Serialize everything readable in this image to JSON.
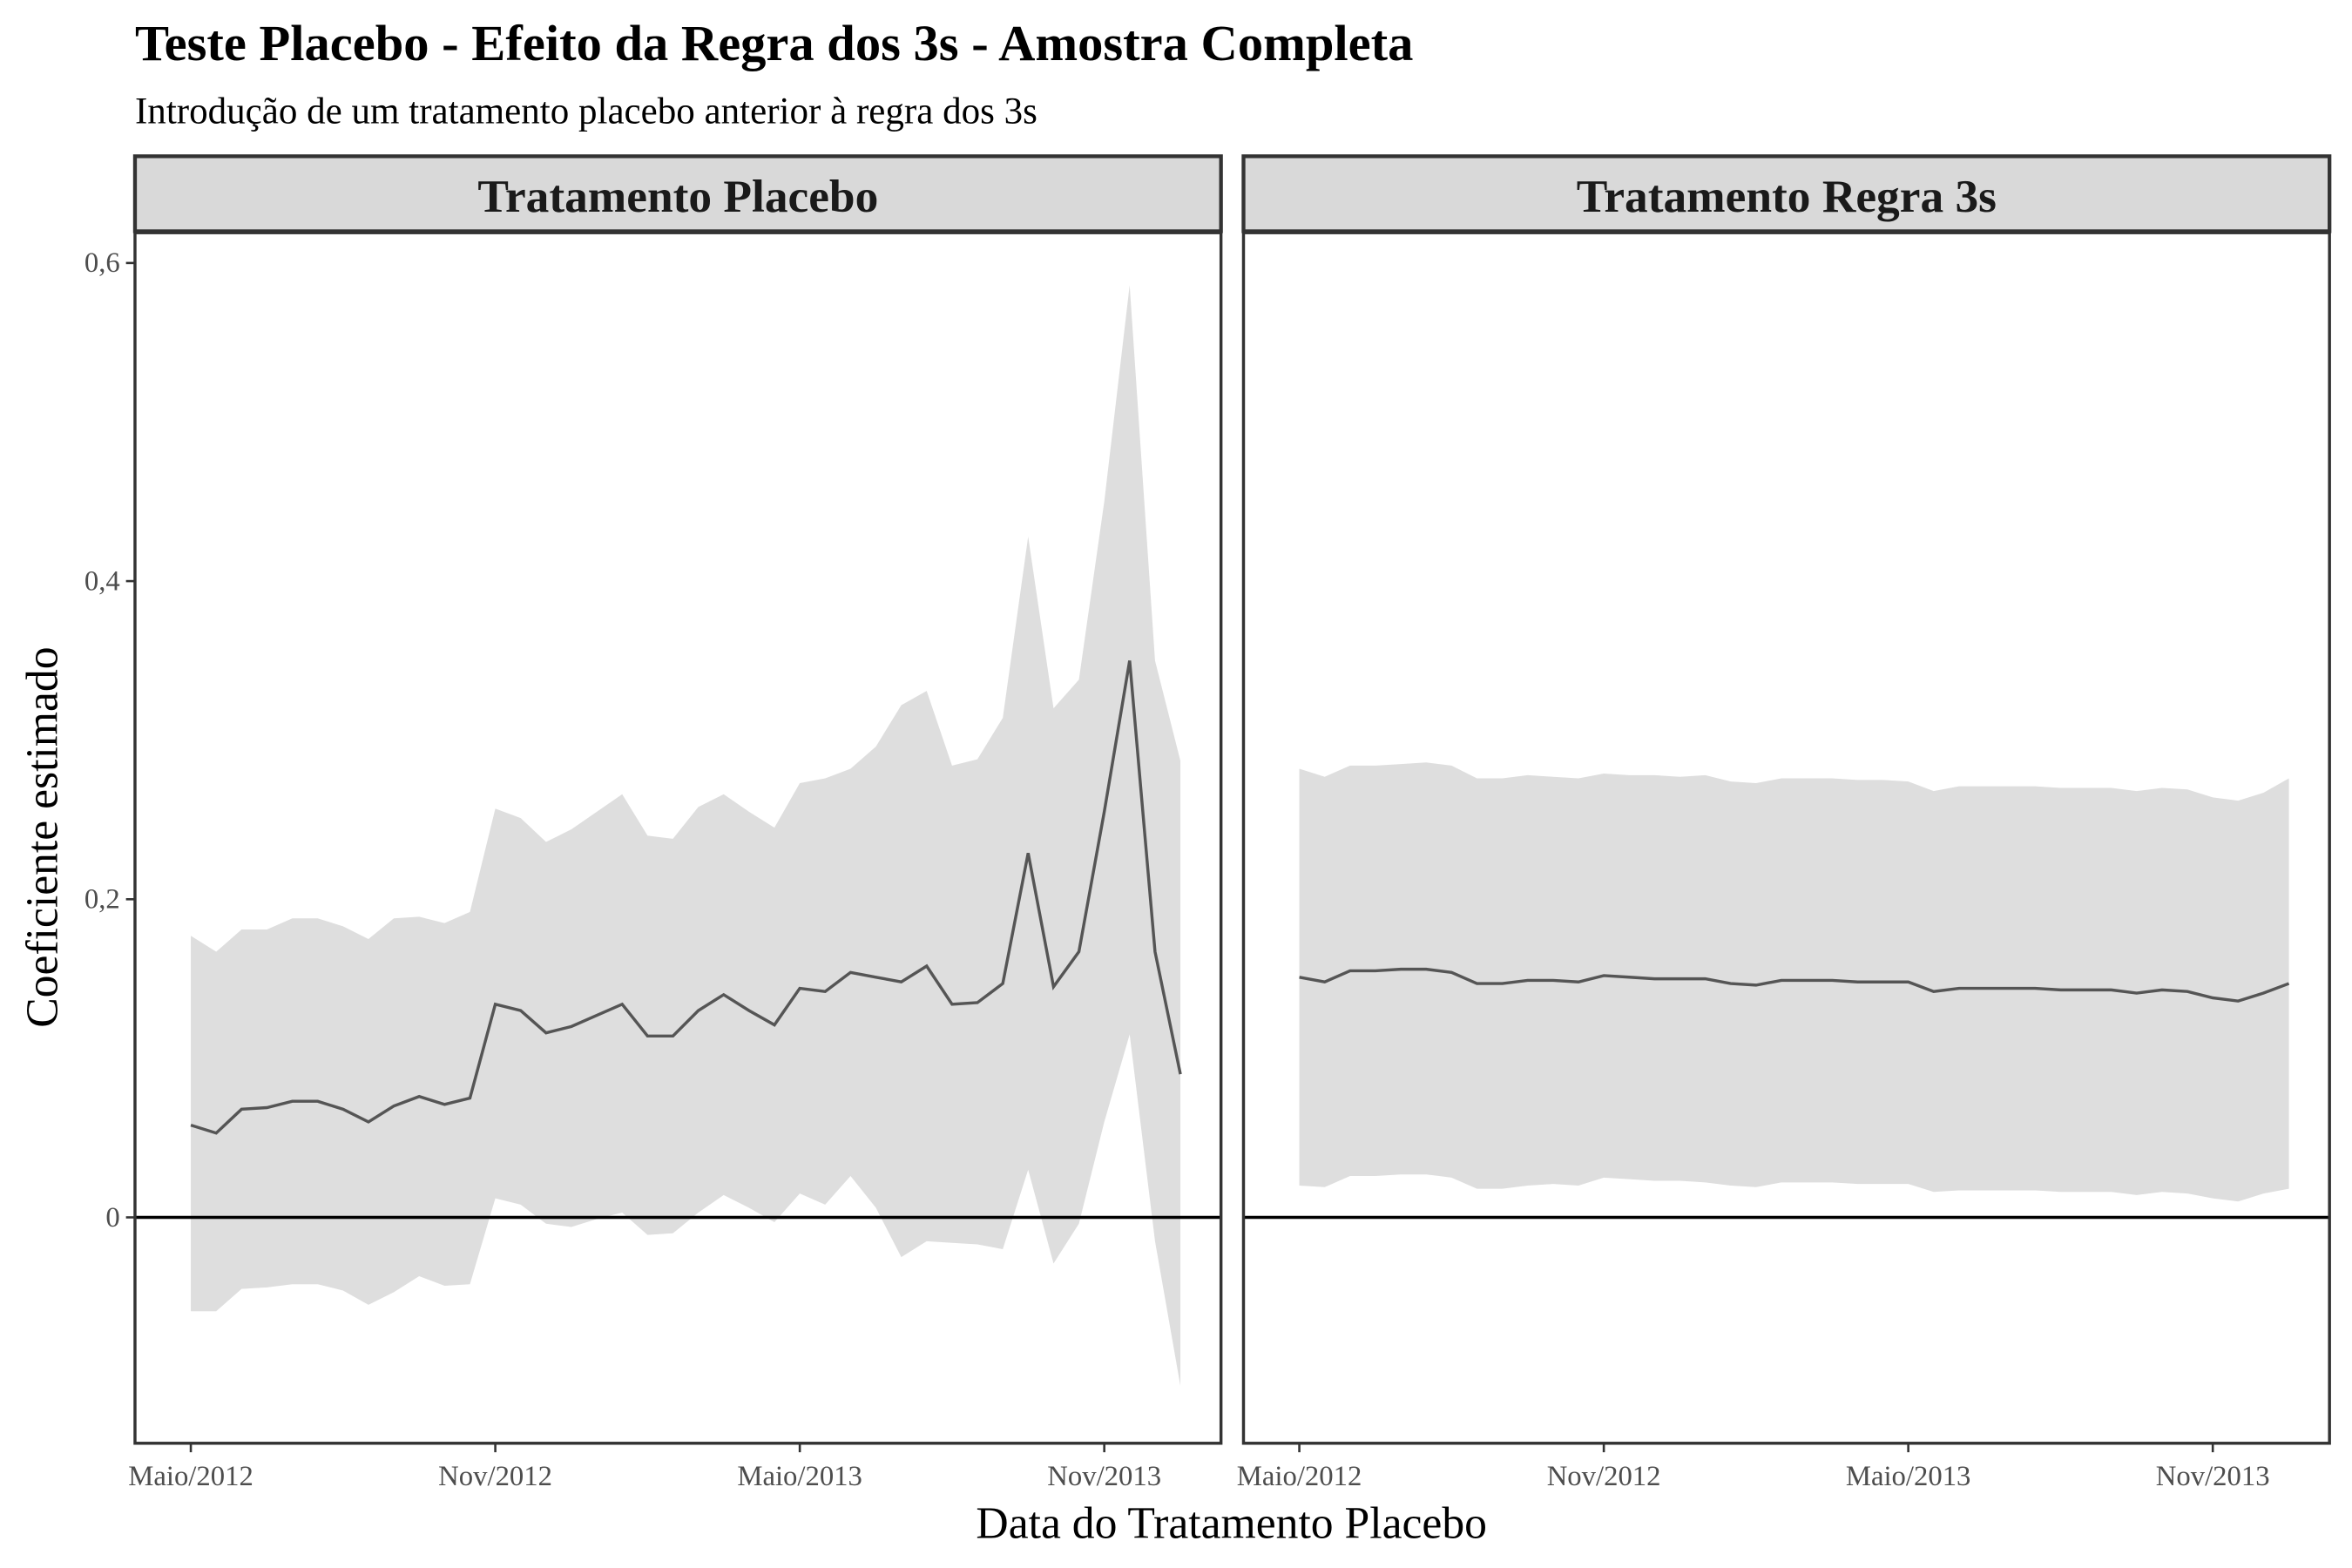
{
  "chart_data": {
    "type": "line",
    "title": "Teste Placebo - Efeito da Regra dos 3s - Amostra Completa",
    "subtitle": "Introdução de um tratamento placebo anterior à regra dos 3s",
    "xlabel": "Data do Tratamento Placebo",
    "ylabel": "Coeficiente estimado",
    "x": [
      0,
      0.5,
      1,
      1.5,
      2,
      2.5,
      3,
      3.5,
      4,
      4.5,
      5,
      5.5,
      6,
      6.5,
      7,
      7.5,
      8,
      8.5,
      9,
      9.5,
      10,
      10.5,
      11,
      11.5,
      12,
      12.5,
      13,
      13.5,
      14,
      14.5,
      15,
      15.5,
      16,
      16.5,
      17,
      17.5,
      18,
      18.5,
      19,
      19.5
    ],
    "xlim": [
      -1.1,
      20.3
    ],
    "xticks": [
      {
        "value": 0,
        "label": "Maio/2012"
      },
      {
        "value": 6,
        "label": "Nov/2012"
      },
      {
        "value": 12,
        "label": "Maio/2013"
      },
      {
        "value": 18,
        "label": "Nov/2013"
      }
    ],
    "ylim": [
      -0.142,
      0.619
    ],
    "yticks": [
      0,
      {
        "value": 0.2,
        "label": "0,2"
      },
      {
        "value": 0.4,
        "label": "0,4"
      },
      {
        "value": 0.6,
        "label": "0,6"
      }
    ],
    "hline": 0,
    "color": "#555555",
    "band_color": "#dedede",
    "panels": [
      {
        "title": "Tratamento Placebo",
        "values": [
          0.058,
          0.053,
          0.068,
          0.069,
          0.073,
          0.073,
          0.068,
          0.06,
          0.07,
          0.076,
          0.071,
          0.075,
          0.134,
          0.13,
          0.116,
          0.12,
          0.127,
          0.134,
          0.114,
          0.114,
          0.13,
          0.14,
          0.13,
          0.121,
          0.144,
          0.142,
          0.154,
          0.151,
          0.148,
          0.158,
          0.134,
          0.135,
          0.147,
          0.229,
          0.145,
          0.167,
          0.255,
          0.35,
          0.167,
          0.09
        ],
        "upper": [
          0.177,
          0.167,
          0.181,
          0.181,
          0.188,
          0.188,
          0.183,
          0.175,
          0.188,
          0.189,
          0.185,
          0.192,
          0.257,
          0.251,
          0.236,
          0.244,
          0.255,
          0.266,
          0.24,
          0.238,
          0.258,
          0.266,
          0.255,
          0.245,
          0.273,
          0.276,
          0.282,
          0.296,
          0.322,
          0.331,
          0.284,
          0.288,
          0.314,
          0.428,
          0.32,
          0.338,
          0.45,
          0.586,
          0.35,
          0.287
        ],
        "lower": [
          -0.059,
          -0.059,
          -0.045,
          -0.044,
          -0.042,
          -0.042,
          -0.046,
          -0.055,
          -0.047,
          -0.037,
          -0.043,
          -0.042,
          0.012,
          0.008,
          -0.004,
          -0.006,
          -0.001,
          0.003,
          -0.011,
          -0.01,
          0.003,
          0.014,
          0.006,
          -0.003,
          0.015,
          0.008,
          0.026,
          0.006,
          -0.025,
          -0.015,
          -0.016,
          -0.017,
          -0.02,
          0.03,
          -0.029,
          -0.004,
          0.06,
          0.115,
          -0.015,
          -0.106
        ]
      },
      {
        "title": "Tratamento Regra 3s",
        "values": [
          0.151,
          0.148,
          0.155,
          0.155,
          0.156,
          0.156,
          0.154,
          0.147,
          0.147,
          0.149,
          0.149,
          0.148,
          0.152,
          0.151,
          0.15,
          0.15,
          0.15,
          0.147,
          0.146,
          0.149,
          0.149,
          0.149,
          0.148,
          0.148,
          0.148,
          0.142,
          0.144,
          0.144,
          0.144,
          0.144,
          0.143,
          0.143,
          0.143,
          0.141,
          0.143,
          0.142,
          0.138,
          0.136,
          0.141,
          0.147
        ],
        "upper": [
          0.282,
          0.277,
          0.284,
          0.284,
          0.285,
          0.286,
          0.284,
          0.276,
          0.276,
          0.278,
          0.277,
          0.276,
          0.279,
          0.278,
          0.278,
          0.277,
          0.278,
          0.274,
          0.273,
          0.276,
          0.276,
          0.276,
          0.275,
          0.275,
          0.274,
          0.268,
          0.271,
          0.271,
          0.271,
          0.271,
          0.27,
          0.27,
          0.27,
          0.268,
          0.27,
          0.269,
          0.264,
          0.262,
          0.267,
          0.276
        ],
        "lower": [
          0.02,
          0.019,
          0.026,
          0.026,
          0.027,
          0.027,
          0.025,
          0.018,
          0.018,
          0.02,
          0.021,
          0.02,
          0.025,
          0.024,
          0.023,
          0.023,
          0.022,
          0.02,
          0.019,
          0.022,
          0.022,
          0.022,
          0.021,
          0.021,
          0.021,
          0.016,
          0.017,
          0.017,
          0.017,
          0.017,
          0.016,
          0.016,
          0.016,
          0.014,
          0.016,
          0.015,
          0.012,
          0.01,
          0.015,
          0.018
        ]
      }
    ]
  }
}
